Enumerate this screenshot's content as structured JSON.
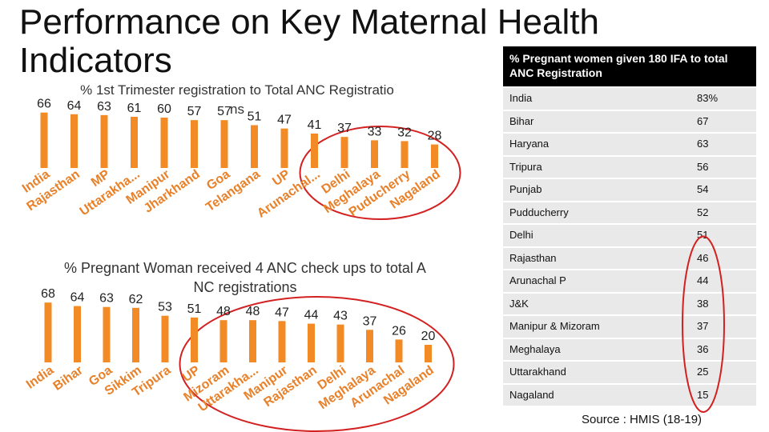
{
  "slide": {
    "title": "Performance on Key Maternal Health Indicators",
    "source": "Source : HMIS (18-19)"
  },
  "colors": {
    "bar": "#f28a26",
    "label": "#e8812a",
    "highlight": "#d32020",
    "table_header_bg": "#000000",
    "table_row_bg": "#e9e9e9"
  },
  "chart_data": [
    {
      "type": "bar",
      "title": "% 1st Trimester registration to Total ANC Registrations",
      "categories": [
        "India",
        "Rajasthan",
        "MP",
        "Uttarakha...",
        "Manipur",
        "Jharkhand",
        "Goa",
        "Telangana",
        "UP",
        "Arunachal...",
        "Delhi",
        "Meghalaya",
        "Puducherry",
        "Nagaland"
      ],
      "values": [
        66,
        64,
        63,
        61,
        60,
        57,
        57,
        51,
        47,
        41,
        37,
        33,
        32,
        28
      ],
      "ylim": [
        0,
        70
      ],
      "highlight_categories": [
        "Arunachal...",
        "Delhi",
        "Meghalaya",
        "Puducherry",
        "Nagaland"
      ]
    },
    {
      "type": "bar",
      "title": "% Pregnant Woman received 4 ANC check ups to total ANC registrations",
      "categories": [
        "India",
        "Bihar",
        "Goa",
        "Sikkim",
        "Tripura",
        "UP",
        "Mizoram",
        "Uttarakha...",
        "Manipur",
        "Rajasthan",
        "Delhi",
        "Meghalaya",
        "Arunachal",
        "Nagaland"
      ],
      "values": [
        68,
        64,
        63,
        62,
        53,
        51,
        48,
        48,
        47,
        44,
        43,
        37,
        26,
        20
      ],
      "ylim": [
        0,
        70
      ],
      "highlight_categories": [
        "UP",
        "Mizoram",
        "Uttarakha...",
        "Manipur",
        "Rajasthan",
        "Delhi",
        "Meghalaya",
        "Arunachal",
        "Nagaland"
      ]
    },
    {
      "type": "table",
      "title": "% Pregnant women given 180 IFA to total ANC Registration",
      "rows": [
        {
          "state": "India",
          "value": "83%"
        },
        {
          "state": "Bihar",
          "value": "67"
        },
        {
          "state": "Haryana",
          "value": "63"
        },
        {
          "state": "Tripura",
          "value": "56"
        },
        {
          "state": "Punjab",
          "value": "54"
        },
        {
          "state": "Pudducherry",
          "value": "52"
        },
        {
          "state": "Delhi",
          "value": "51"
        },
        {
          "state": "Rajasthan",
          "value": "46"
        },
        {
          "state": "Arunachal P",
          "value": "44"
        },
        {
          "state": "J&K",
          "value": "38"
        },
        {
          "state": "Manipur & Mizoram",
          "value": "37"
        },
        {
          "state": "Meghalaya",
          "value": "36"
        },
        {
          "state": "Uttarakhand",
          "value": "25"
        },
        {
          "state": "Nagaland",
          "value": "15"
        }
      ],
      "highlight_values_from_row": 7
    }
  ]
}
